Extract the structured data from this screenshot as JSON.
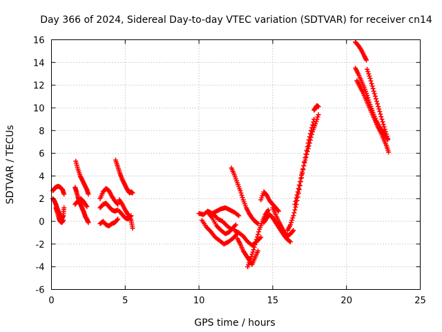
{
  "chart_data": {
    "type": "scatter",
    "title": "Day 366 of 2024, Sidereal Day-to-day VTEC variation (SDTVAR) for receiver cn14",
    "xlabel": "GPS time / hours",
    "ylabel": "SDTVAR / TECUs",
    "xlim": [
      0,
      25
    ],
    "ylim": [
      -6,
      16
    ],
    "xticks": [
      0,
      5,
      10,
      15,
      20,
      25
    ],
    "yticks": [
      -6,
      -4,
      -2,
      0,
      2,
      4,
      6,
      8,
      10,
      12,
      14,
      16
    ],
    "xtick_labels": [
      "0",
      "5",
      "10",
      "15",
      "20",
      "25"
    ],
    "ytick_labels": [
      "-6",
      "-4",
      "-2",
      "0",
      "2",
      "4",
      "6",
      "8",
      "10",
      "12",
      "14",
      "16"
    ],
    "grid": true,
    "marker": "plus",
    "color": "#ff0000",
    "series": [
      {
        "name": "s1",
        "x": [
          0.1,
          0.2,
          0.3,
          0.45,
          0.6,
          0.75,
          0.85
        ],
        "y": [
          2.7,
          2.9,
          3.0,
          3.1,
          3.0,
          2.8,
          2.4
        ]
      },
      {
        "name": "s2",
        "x": [
          0.1,
          0.2,
          0.3,
          0.4,
          0.5,
          0.6,
          0.7,
          0.8,
          0.85
        ],
        "y": [
          2.0,
          1.8,
          1.5,
          1.1,
          0.8,
          0.4,
          0.2,
          0.5,
          1.2
        ]
      },
      {
        "name": "s3",
        "x": [
          0.3,
          0.4,
          0.5,
          0.6,
          0.7,
          0.8
        ],
        "y": [
          1.2,
          0.8,
          0.3,
          0.0,
          -0.1,
          0.1
        ]
      },
      {
        "name": "s4",
        "x": [
          1.65,
          1.8,
          1.95,
          2.1,
          2.25,
          2.4,
          2.5
        ],
        "y": [
          5.3,
          4.6,
          4.0,
          3.6,
          3.2,
          2.8,
          2.4
        ]
      },
      {
        "name": "s5",
        "x": [
          1.6,
          1.7,
          1.8,
          1.9,
          2.0,
          2.1,
          2.2,
          2.3,
          2.4,
          2.5
        ],
        "y": [
          3.0,
          2.6,
          2.1,
          1.7,
          1.4,
          1.1,
          0.8,
          0.4,
          0.2,
          -0.1
        ]
      },
      {
        "name": "s6",
        "x": [
          1.6,
          1.8,
          2.0,
          2.2,
          2.4
        ],
        "y": [
          1.5,
          1.8,
          2.0,
          1.7,
          1.3
        ]
      },
      {
        "name": "s7",
        "x": [
          3.3,
          3.5,
          3.7,
          3.9,
          4.1,
          4.3,
          4.5
        ],
        "y": [
          2.0,
          2.6,
          2.9,
          2.7,
          2.2,
          1.8,
          1.5
        ]
      },
      {
        "name": "s8",
        "x": [
          3.3,
          3.5,
          3.7,
          3.9,
          4.1,
          4.3,
          4.5
        ],
        "y": [
          1.2,
          1.5,
          1.6,
          1.3,
          1.0,
          0.9,
          1.0
        ]
      },
      {
        "name": "s9",
        "x": [
          3.3,
          3.5,
          3.7,
          3.9,
          4.1,
          4.3,
          4.5
        ],
        "y": [
          -0.2,
          0.0,
          -0.3,
          -0.4,
          -0.2,
          -0.1,
          0.2
        ]
      },
      {
        "name": "s10",
        "x": [
          4.35,
          4.5,
          4.65,
          4.8,
          4.95,
          5.1,
          5.2,
          5.3,
          5.4,
          5.5
        ],
        "y": [
          5.4,
          4.8,
          4.2,
          3.7,
          3.3,
          2.9,
          2.7,
          2.5,
          2.6,
          2.5
        ]
      },
      {
        "name": "s11",
        "x": [
          4.6,
          4.8,
          5.0,
          5.2,
          5.4,
          5.5
        ],
        "y": [
          1.9,
          1.5,
          1.0,
          0.6,
          0.1,
          -0.6
        ]
      },
      {
        "name": "s12",
        "x": [
          4.6,
          4.8,
          5.0,
          5.2,
          5.4
        ],
        "y": [
          0.9,
          0.6,
          0.3,
          0.2,
          0.5
        ]
      },
      {
        "name": "s13",
        "x": [
          10.0,
          10.3,
          10.6,
          10.9,
          11.2,
          11.5,
          11.8,
          12.1,
          12.4,
          12.7
        ],
        "y": [
          0.7,
          0.6,
          0.9,
          0.7,
          0.9,
          1.1,
          1.2,
          1.0,
          0.8,
          0.5
        ]
      },
      {
        "name": "s14",
        "x": [
          10.2,
          10.5,
          10.8,
          11.1,
          11.4,
          11.7,
          12.0,
          12.3,
          12.6
        ],
        "y": [
          0.1,
          -0.5,
          -0.9,
          -1.4,
          -1.7,
          -2.0,
          -1.8,
          -1.5,
          -1.1
        ]
      },
      {
        "name": "s15",
        "x": [
          10.6,
          10.9,
          11.2,
          11.5,
          11.8,
          12.1
        ],
        "y": [
          0.8,
          0.3,
          -0.4,
          -0.8,
          -1.1,
          -0.9
        ]
      },
      {
        "name": "s16",
        "x": [
          11.0,
          11.3,
          11.6,
          11.9,
          12.2,
          12.5
        ],
        "y": [
          0.6,
          0.2,
          0.0,
          -0.4,
          -0.7,
          -0.3
        ]
      },
      {
        "name": "s17",
        "x": [
          12.2,
          12.4,
          12.6,
          12.8,
          13.0,
          13.2,
          13.4,
          13.6,
          13.8,
          14.0
        ],
        "y": [
          4.7,
          4.1,
          3.4,
          2.7,
          1.9,
          1.2,
          0.7,
          0.3,
          0.0,
          -0.2
        ]
      },
      {
        "name": "s18",
        "x": [
          12.6,
          12.8,
          13.0,
          13.2,
          13.4,
          13.6,
          13.8,
          14.0
        ],
        "y": [
          -1.5,
          -2.0,
          -2.6,
          -3.0,
          -3.4,
          -3.8,
          -3.2,
          -2.6
        ]
      },
      {
        "name": "s19",
        "x": [
          12.4,
          12.7,
          13.0,
          13.3,
          13.6,
          13.9,
          14.2
        ],
        "y": [
          -0.8,
          -1.0,
          -1.3,
          -1.8,
          -2.1,
          -1.8,
          -1.4
        ]
      },
      {
        "name": "s20",
        "x": [
          13.3,
          13.5,
          13.7,
          13.9,
          14.1,
          14.3,
          14.5,
          14.7
        ],
        "y": [
          -4.0,
          -3.3,
          -2.5,
          -1.6,
          -0.7,
          0.0,
          0.6,
          1.0
        ]
      },
      {
        "name": "s21",
        "x": [
          14.2,
          14.4,
          14.6,
          14.8,
          15.0,
          15.2,
          15.4
        ],
        "y": [
          1.9,
          2.6,
          2.3,
          1.8,
          1.5,
          1.2,
          0.9
        ]
      },
      {
        "name": "s22",
        "x": [
          14.4,
          14.6,
          14.8,
          15.0,
          15.2,
          15.4,
          15.6,
          15.8,
          16.0,
          16.2
        ],
        "y": [
          -0.1,
          0.3,
          0.6,
          0.3,
          -0.1,
          -0.5,
          -0.9,
          -1.3,
          -1.6,
          -1.8
        ]
      },
      {
        "name": "s23",
        "x": [
          15.0,
          15.2,
          15.4,
          15.6,
          15.8,
          16.0,
          16.2,
          16.4
        ],
        "y": [
          1.2,
          0.6,
          0.0,
          -0.5,
          -1.0,
          -1.3,
          -1.1,
          -0.8
        ]
      },
      {
        "name": "s24",
        "x": [
          16.0,
          16.2,
          16.4,
          16.6,
          16.8,
          17.0,
          17.2,
          17.4,
          17.6,
          17.8
        ],
        "y": [
          -0.8,
          -0.3,
          0.5,
          1.5,
          2.8,
          4.2,
          5.6,
          6.9,
          8.0,
          9.0
        ]
      },
      {
        "name": "s25",
        "x": [
          16.5,
          16.7,
          16.9,
          17.1,
          17.3,
          17.5,
          17.7,
          17.9,
          18.1
        ],
        "y": [
          1.5,
          2.6,
          3.8,
          4.9,
          5.9,
          6.9,
          7.9,
          8.6,
          9.4
        ]
      },
      {
        "name": "s26",
        "x": [
          17.8,
          17.9,
          18.0,
          18.1
        ],
        "y": [
          9.8,
          10.0,
          10.2,
          10.1
        ]
      },
      {
        "name": "s27",
        "x": [
          20.6,
          20.8,
          21.0,
          21.2,
          21.35
        ],
        "y": [
          15.8,
          15.5,
          15.1,
          14.6,
          14.2
        ]
      },
      {
        "name": "s28",
        "x": [
          20.6,
          20.8,
          21.0,
          21.2,
          21.4,
          21.6,
          21.8,
          22.0,
          22.2,
          22.4,
          22.6,
          22.8
        ],
        "y": [
          13.5,
          13.0,
          12.4,
          11.8,
          11.1,
          10.3,
          9.6,
          8.9,
          8.4,
          8.0,
          7.6,
          7.2
        ]
      },
      {
        "name": "s29",
        "x": [
          20.7,
          20.9,
          21.1,
          21.3,
          21.5,
          21.7,
          21.9,
          22.1,
          22.3,
          22.5,
          22.7,
          22.85
        ],
        "y": [
          12.4,
          11.9,
          11.4,
          10.8,
          10.2,
          9.6,
          9.0,
          8.4,
          7.9,
          7.3,
          6.7,
          6.1
        ]
      },
      {
        "name": "s30",
        "x": [
          21.4,
          21.6,
          21.8,
          22.0,
          22.2,
          22.4,
          22.6,
          22.8
        ],
        "y": [
          13.4,
          12.6,
          11.7,
          10.8,
          9.9,
          9.0,
          8.1,
          7.3
        ]
      }
    ]
  }
}
